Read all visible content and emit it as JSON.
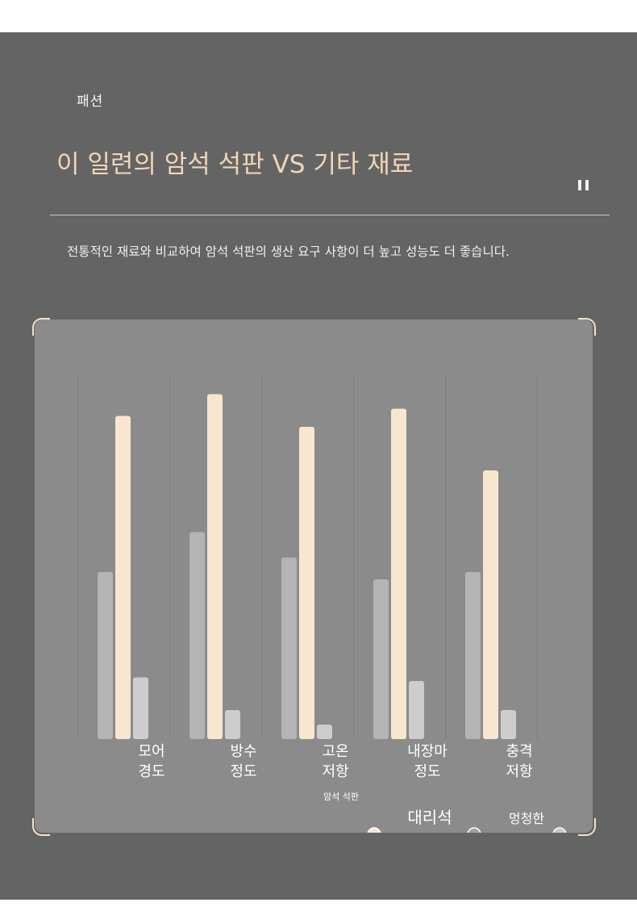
{
  "header": {
    "tag": "패션",
    "title": "이 일련의 암석 석판 VS 기타 재료",
    "description": "전통적인 재료와 비교하여 암석 석판의 생산 요구 사항이 더 높고 성능도 더 좋습니다."
  },
  "chart_data": {
    "type": "bar",
    "categories": [
      [
        "모어",
        "경도"
      ],
      [
        "방수",
        "정도"
      ],
      [
        "고온",
        "저항"
      ],
      [
        "내장마",
        "정도"
      ],
      [
        "충격",
        "저항"
      ]
    ],
    "series": [
      {
        "name": "대리석",
        "color": "#b4b4b4",
        "values": [
          46,
          57,
          50,
          44,
          46
        ]
      },
      {
        "name": "암석 석판",
        "color": "#f8e6cf",
        "values": [
          89,
          95,
          86,
          91,
          74
        ]
      },
      {
        "name": "멍청한",
        "color": "#cdcdcd",
        "values": [
          17,
          8,
          4,
          16,
          8
        ]
      }
    ],
    "ylim": [
      0,
      100
    ],
    "legend_placement": "bottom-right",
    "legend": [
      {
        "label": "암석 석판",
        "color": "#f8e6cf"
      },
      {
        "label": "대리석",
        "color": "#9aa2ad"
      },
      {
        "label": "멍청한",
        "color": "#c8c8c8"
      }
    ]
  }
}
